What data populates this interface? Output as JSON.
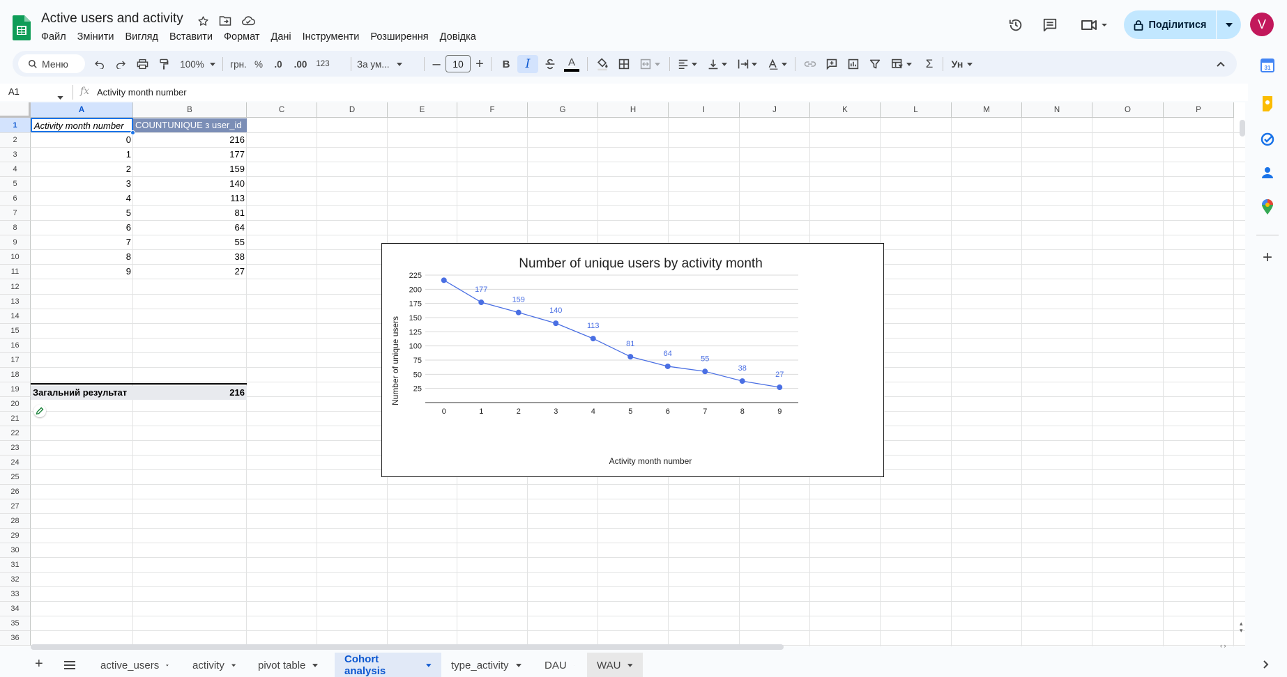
{
  "app": {
    "doc_title": "Active users and activity",
    "menu": [
      "Файл",
      "Змінити",
      "Вигляд",
      "Вставити",
      "Формат",
      "Дані",
      "Інструменти",
      "Розширення",
      "Довідка"
    ],
    "share_label": "Поділитися",
    "avatar_letter": "V"
  },
  "toolbar": {
    "search_label": "Меню",
    "zoom": "100%",
    "currency": "грн.",
    "percent": "%",
    "dec_less": ".0",
    "dec_more": ".00",
    "format_123": "123",
    "font": "За ум...",
    "font_size": "10",
    "bold": "B",
    "italic": "I",
    "text_color_letter": "A"
  },
  "formula_bar": {
    "name_box": "A1",
    "formula": "Activity month number"
  },
  "grid": {
    "columns": [
      "A",
      "B",
      "C",
      "D",
      "E",
      "F",
      "G",
      "H",
      "I",
      "J",
      "K",
      "L",
      "M",
      "N",
      "O",
      "P"
    ],
    "rows": [
      "1",
      "2",
      "3",
      "4",
      "5",
      "6",
      "7",
      "8",
      "9",
      "10",
      "11",
      "12",
      "13",
      "14",
      "15",
      "16",
      "17",
      "18",
      "19",
      "20",
      "21",
      "22",
      "23",
      "24",
      "25",
      "26",
      "27",
      "28",
      "29",
      "30",
      "31",
      "32",
      "33",
      "34",
      "35",
      "36"
    ],
    "header": [
      "Activity month number",
      "COUNTUNIQUE з user_id"
    ],
    "data": [
      [
        "0",
        "216"
      ],
      [
        "1",
        "177"
      ],
      [
        "2",
        "159"
      ],
      [
        "3",
        "140"
      ],
      [
        "4",
        "113"
      ],
      [
        "5",
        "81"
      ],
      [
        "6",
        "64"
      ],
      [
        "7",
        "55"
      ],
      [
        "8",
        "38"
      ],
      [
        "9",
        "27"
      ]
    ],
    "total": [
      "Загальний результат",
      "216"
    ]
  },
  "chart_data": {
    "type": "line",
    "title": "Number of unique users by activity month",
    "xlabel": "Activity month number",
    "ylabel": "Number of unique users",
    "categories": [
      "0",
      "1",
      "2",
      "3",
      "4",
      "5",
      "6",
      "7",
      "8",
      "9"
    ],
    "series": [
      {
        "values": [
          216,
          177,
          159,
          140,
          113,
          81,
          64,
          55,
          38,
          27
        ],
        "color": "#4a6fe3"
      }
    ],
    "data_labels": [
      "",
      "177",
      "159",
      "140",
      "113",
      "81",
      "64",
      "55",
      "38",
      "27"
    ],
    "yticks": [
      25,
      50,
      75,
      100,
      125,
      150,
      175,
      200,
      225
    ],
    "ylim": [
      0,
      225
    ],
    "grid": true,
    "legend": "none"
  },
  "tabs": {
    "sheets": [
      "active_users",
      "activity",
      "pivot table",
      "Cohort analysis",
      "type_activity",
      "DAU",
      "WAU"
    ],
    "active": "Cohort analysis"
  },
  "colors": {
    "accent": "#0b57d0",
    "pivot_header": "#7b8eb6",
    "share_bg": "#c2e7ff",
    "avatar": "#c2185b"
  }
}
